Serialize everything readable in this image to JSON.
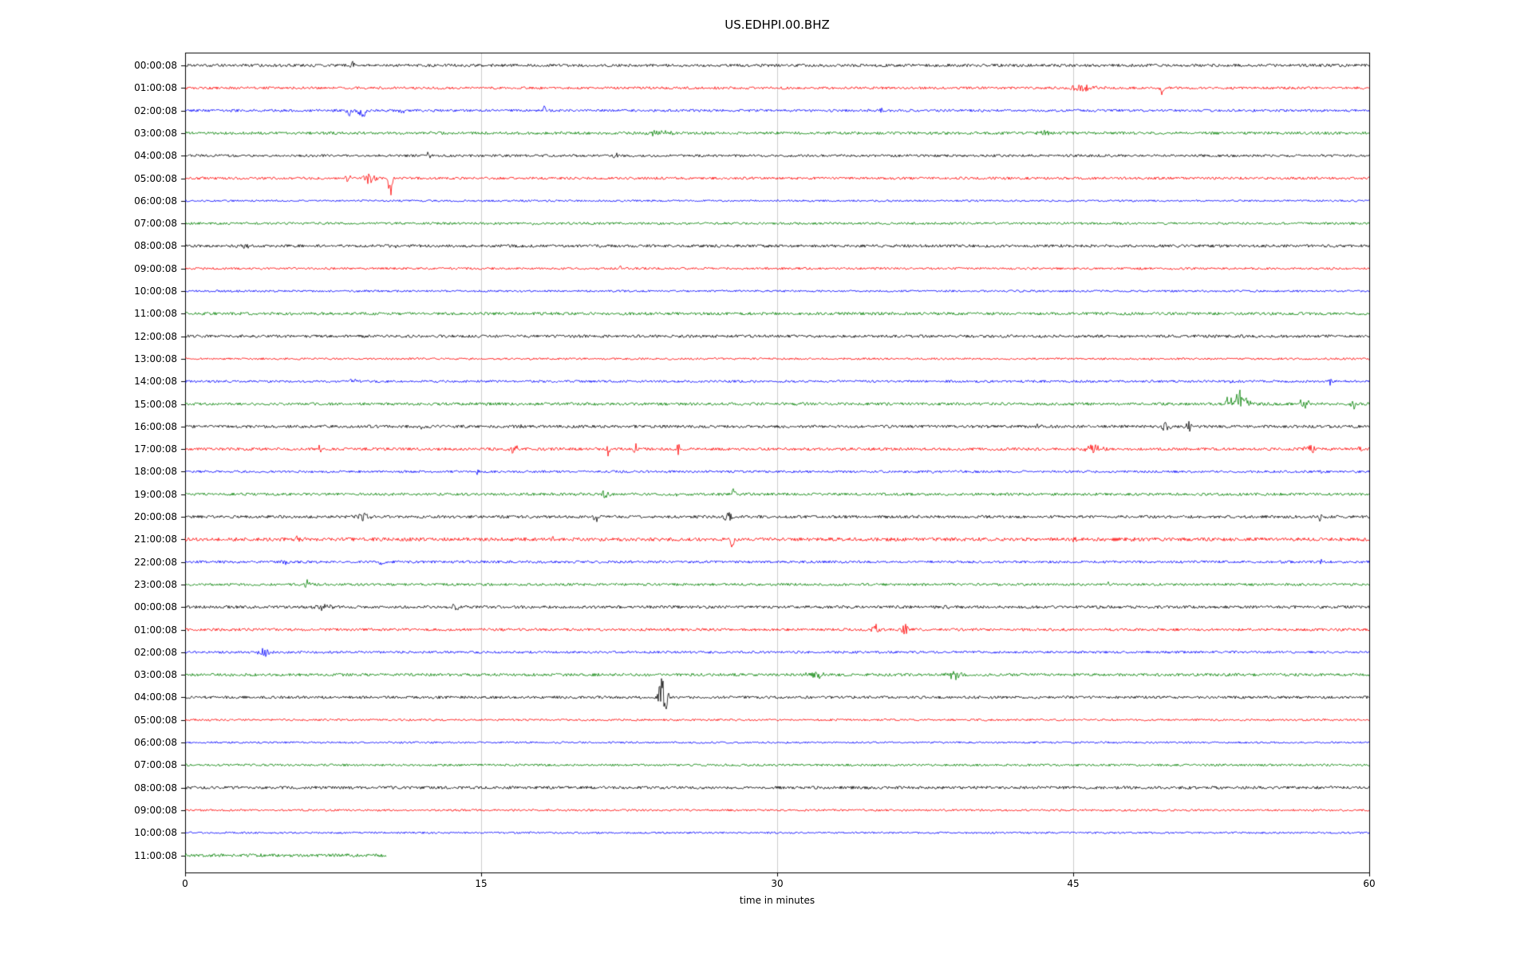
{
  "title": "US.EDHPI.00.BHZ",
  "xlabel": "time in minutes",
  "chart_data": {
    "type": "line",
    "title": "US.EDHPI.00.BHZ",
    "xlabel": "time in minutes",
    "x_range": [
      0,
      60
    ],
    "x_tick_labels": [
      "0",
      "15",
      "30",
      "45",
      "60"
    ],
    "grid": "vertical-only",
    "trace_color_cycle": [
      "#000000",
      "#ff0000",
      "#0000ff",
      "#008000"
    ],
    "frame_color": "#000000",
    "grid_color": "#cccccc",
    "rows": [
      {
        "label": "00:00:08",
        "color": "#000000",
        "noise": 1.8,
        "end_minute": 60,
        "events": [
          {
            "t": 8.5,
            "amp": 4,
            "dur": 0.5
          }
        ]
      },
      {
        "label": "01:00:08",
        "color": "#ff0000",
        "noise": 1.6,
        "end_minute": 60,
        "events": [
          {
            "t": 45.5,
            "amp": 4,
            "dur": 3
          },
          {
            "t": 49.5,
            "amp": 10,
            "dur": 0.4,
            "bias": 0.3
          }
        ]
      },
      {
        "label": "02:00:08",
        "color": "#0000ff",
        "noise": 1.6,
        "end_minute": 60,
        "events": [
          {
            "t": 8.3,
            "amp": 10,
            "dur": 0.5,
            "bias": 0.5
          },
          {
            "t": 9.0,
            "amp": 12,
            "dur": 0.8,
            "bias": 0.5
          },
          {
            "t": 11.0,
            "amp": 5,
            "dur": 0.5
          },
          {
            "t": 18.2,
            "amp": 7,
            "dur": 0.3
          },
          {
            "t": 35.3,
            "amp": 5,
            "dur": 0.4
          }
        ]
      },
      {
        "label": "03:00:08",
        "color": "#008000",
        "noise": 1.8,
        "end_minute": 60,
        "events": [
          {
            "t": 24.0,
            "amp": 4,
            "dur": 2
          },
          {
            "t": 43.5,
            "amp": 3,
            "dur": 1
          }
        ]
      },
      {
        "label": "04:00:08",
        "color": "#000000",
        "noise": 1.6,
        "end_minute": 60,
        "events": [
          {
            "t": 12.3,
            "amp": 5,
            "dur": 0.6
          },
          {
            "t": 21.8,
            "amp": 4,
            "dur": 0.5
          }
        ]
      },
      {
        "label": "05:00:08",
        "color": "#ff0000",
        "noise": 1.6,
        "end_minute": 60,
        "events": [
          {
            "t": 8.2,
            "amp": 6,
            "dur": 0.6
          },
          {
            "t": 9.3,
            "amp": 8,
            "dur": 1.2
          },
          {
            "t": 10.4,
            "amp": 40,
            "dur": 0.35,
            "bias": 0.6
          }
        ]
      },
      {
        "label": "06:00:08",
        "color": "#0000ff",
        "noise": 1.2,
        "end_minute": 60,
        "events": []
      },
      {
        "label": "07:00:08",
        "color": "#008000",
        "noise": 1.5,
        "end_minute": 60,
        "events": [
          {
            "t": 17.5,
            "amp": 3,
            "dur": 0.5
          }
        ]
      },
      {
        "label": "08:00:08",
        "color": "#000000",
        "noise": 1.8,
        "end_minute": 60,
        "events": [
          {
            "t": 3.0,
            "amp": 3.5,
            "dur": 1
          },
          {
            "t": 10.7,
            "amp": 3,
            "dur": 0.4
          }
        ]
      },
      {
        "label": "09:00:08",
        "color": "#ff0000",
        "noise": 1.4,
        "end_minute": 60,
        "events": [
          {
            "t": 22.0,
            "amp": 3.5,
            "dur": 0.4
          }
        ]
      },
      {
        "label": "10:00:08",
        "color": "#0000ff",
        "noise": 1.3,
        "end_minute": 60,
        "events": []
      },
      {
        "label": "11:00:08",
        "color": "#008000",
        "noise": 1.8,
        "end_minute": 60,
        "events": []
      },
      {
        "label": "12:00:08",
        "color": "#000000",
        "noise": 1.8,
        "end_minute": 60,
        "events": []
      },
      {
        "label": "13:00:08",
        "color": "#ff0000",
        "noise": 1.3,
        "end_minute": 60,
        "events": []
      },
      {
        "label": "14:00:08",
        "color": "#0000ff",
        "noise": 1.5,
        "end_minute": 60,
        "events": [
          {
            "t": 8.5,
            "amp": 6,
            "dur": 0.8
          },
          {
            "t": 53.0,
            "amp": 4,
            "dur": 0.5
          },
          {
            "t": 58.0,
            "amp": 5,
            "dur": 0.4
          }
        ]
      },
      {
        "label": "15:00:08",
        "color": "#008000",
        "noise": 1.8,
        "end_minute": 60,
        "events": [
          {
            "t": 52.9,
            "amp": 16,
            "dur": 0.5,
            "bias": -0.3
          },
          {
            "t": 53.5,
            "amp": 20,
            "dur": 1.2,
            "bias": -0.3
          },
          {
            "t": 56.7,
            "amp": 8,
            "dur": 0.8
          },
          {
            "t": 59.2,
            "amp": 9,
            "dur": 0.5
          }
        ]
      },
      {
        "label": "16:00:08",
        "color": "#000000",
        "noise": 1.8,
        "end_minute": 60,
        "events": [
          {
            "t": 12.0,
            "amp": 4,
            "dur": 0.4
          },
          {
            "t": 17.0,
            "amp": 4,
            "dur": 0.4
          },
          {
            "t": 43.2,
            "amp": 6,
            "dur": 0.5
          },
          {
            "t": 49.7,
            "amp": 8,
            "dur": 0.8
          },
          {
            "t": 50.8,
            "amp": 8,
            "dur": 0.6
          }
        ]
      },
      {
        "label": "17:00:08",
        "color": "#ff0000",
        "noise": 1.8,
        "end_minute": 60,
        "events": [
          {
            "t": 6.8,
            "amp": 4,
            "dur": 0.5
          },
          {
            "t": 16.6,
            "amp": 6,
            "dur": 1
          },
          {
            "t": 21.4,
            "amp": 10,
            "dur": 0.4
          },
          {
            "t": 22.8,
            "amp": 9,
            "dur": 0.4
          },
          {
            "t": 25.0,
            "amp": 9,
            "dur": 0.3
          },
          {
            "t": 46.0,
            "amp": 6,
            "dur": 1.5
          },
          {
            "t": 57.0,
            "amp": 7,
            "dur": 1
          },
          {
            "t": 59.5,
            "amp": 5,
            "dur": 0.3
          }
        ]
      },
      {
        "label": "18:00:08",
        "color": "#0000ff",
        "noise": 1.5,
        "end_minute": 60,
        "events": [
          {
            "t": 14.8,
            "amp": 5,
            "dur": 0.5
          },
          {
            "t": 37.8,
            "amp": 5,
            "dur": 0.5
          },
          {
            "t": 57.5,
            "amp": 4,
            "dur": 0.3
          }
        ]
      },
      {
        "label": "19:00:08",
        "color": "#008000",
        "noise": 1.7,
        "end_minute": 60,
        "events": [
          {
            "t": 21.3,
            "amp": 7,
            "dur": 1
          },
          {
            "t": 25.0,
            "amp": 5,
            "dur": 0.6
          },
          {
            "t": 27.8,
            "amp": 14,
            "dur": 0.25,
            "bias": -0.6
          }
        ]
      },
      {
        "label": "20:00:08",
        "color": "#000000",
        "noise": 1.8,
        "end_minute": 60,
        "events": [
          {
            "t": 9.0,
            "amp": 7,
            "dur": 1.2
          },
          {
            "t": 20.8,
            "amp": 11,
            "dur": 0.3,
            "bias": 0.4
          },
          {
            "t": 27.5,
            "amp": 9,
            "dur": 0.7
          },
          {
            "t": 57.5,
            "amp": 9,
            "dur": 0.25
          }
        ]
      },
      {
        "label": "21:00:08",
        "color": "#ff0000",
        "noise": 2.2,
        "end_minute": 60,
        "events": [
          {
            "t": 5.8,
            "amp": 5,
            "dur": 0.7
          },
          {
            "t": 18.7,
            "amp": 4,
            "dur": 0.4
          },
          {
            "t": 27.7,
            "amp": 14,
            "dur": 0.3,
            "bias": 0.5
          },
          {
            "t": 45.0,
            "amp": 5,
            "dur": 0.4
          },
          {
            "t": 48.0,
            "amp": 5,
            "dur": 0.4
          }
        ]
      },
      {
        "label": "22:00:08",
        "color": "#0000ff",
        "noise": 1.6,
        "end_minute": 60,
        "events": [
          {
            "t": 5.0,
            "amp": 4,
            "dur": 0.7
          },
          {
            "t": 10.0,
            "amp": 4,
            "dur": 0.6
          },
          {
            "t": 57.5,
            "amp": 7,
            "dur": 0.25
          }
        ]
      },
      {
        "label": "23:00:08",
        "color": "#008000",
        "noise": 1.6,
        "end_minute": 60,
        "events": [
          {
            "t": 6.2,
            "amp": 5,
            "dur": 0.7
          },
          {
            "t": 46.8,
            "amp": 3,
            "dur": 0.4
          }
        ]
      },
      {
        "label": "00:00:08",
        "color": "#000000",
        "noise": 1.8,
        "end_minute": 60,
        "events": [
          {
            "t": 7.0,
            "amp": 4,
            "dur": 1.5
          },
          {
            "t": 13.7,
            "amp": 4,
            "dur": 0.6
          },
          {
            "t": 38.5,
            "amp": 3,
            "dur": 0.8
          }
        ]
      },
      {
        "label": "01:00:08",
        "color": "#ff0000",
        "noise": 1.7,
        "end_minute": 60,
        "events": [
          {
            "t": 35.0,
            "amp": 9,
            "dur": 0.8
          },
          {
            "t": 36.5,
            "amp": 9,
            "dur": 0.6
          }
        ]
      },
      {
        "label": "02:00:08",
        "color": "#0000ff",
        "noise": 1.5,
        "end_minute": 60,
        "events": [
          {
            "t": 4.0,
            "amp": 6,
            "dur": 1.2
          }
        ]
      },
      {
        "label": "03:00:08",
        "color": "#008000",
        "noise": 1.8,
        "end_minute": 60,
        "events": [
          {
            "t": 32.0,
            "amp": 6,
            "dur": 1.5
          },
          {
            "t": 39.0,
            "amp": 6,
            "dur": 1.2
          }
        ]
      },
      {
        "label": "04:00:08",
        "color": "#000000",
        "noise": 1.7,
        "end_minute": 60,
        "events": [
          {
            "t": 24.2,
            "amp": 34,
            "dur": 0.8
          }
        ]
      },
      {
        "label": "05:00:08",
        "color": "#ff0000",
        "noise": 1.3,
        "end_minute": 60,
        "events": []
      },
      {
        "label": "06:00:08",
        "color": "#0000ff",
        "noise": 1.2,
        "end_minute": 60,
        "events": []
      },
      {
        "label": "07:00:08",
        "color": "#008000",
        "noise": 1.4,
        "end_minute": 60,
        "events": []
      },
      {
        "label": "08:00:08",
        "color": "#000000",
        "noise": 1.8,
        "end_minute": 60,
        "events": []
      },
      {
        "label": "09:00:08",
        "color": "#ff0000",
        "noise": 1.3,
        "end_minute": 60,
        "events": []
      },
      {
        "label": "10:00:08",
        "color": "#0000ff",
        "noise": 1.2,
        "end_minute": 60,
        "events": []
      },
      {
        "label": "11:00:08",
        "color": "#008000",
        "noise": 2.0,
        "end_minute": 10.2,
        "events": []
      }
    ]
  }
}
